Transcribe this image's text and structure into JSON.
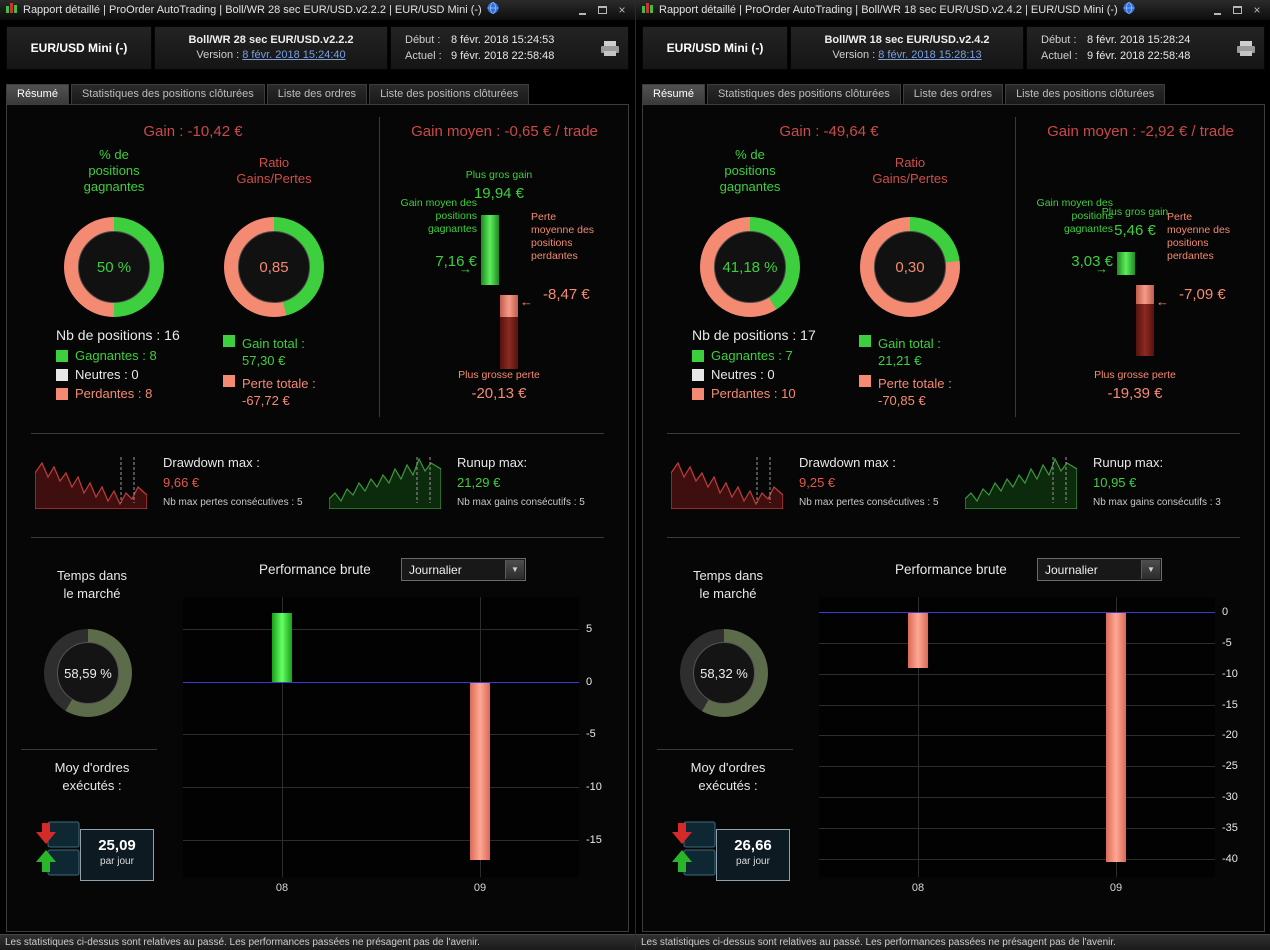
{
  "status_note": "Les statistiques ci-dessus sont relatives au passé. Les performances passées ne présagent pas de l'avenir.",
  "colors": {
    "green": "#3ecf3e",
    "salmon": "#f48a72",
    "red_title": "#c94a4a",
    "link_blue": "#7aa0e0",
    "zero_line_blue": "#3a3ad8"
  },
  "windows": [
    {
      "titlebar": {
        "text": "Rapport détaillé | ProOrder AutoTrading | Boll/WR 28 sec EUR/USD.v2.2.2 | EUR/USD Mini (-)"
      },
      "header": {
        "instrument": "EUR/USD Mini (-)",
        "strategy": "Boll/WR 28 sec EUR/USD.v2.2.2",
        "version_label": "Version :",
        "version_date": "8 févr. 2018 15:24:40",
        "debut_label": "Début :",
        "debut_value": "8 févr. 2018 15:24:53",
        "actuel_label": "Actuel :",
        "actuel_value": "9 févr. 2018 22:58:48"
      },
      "tabs": {
        "resume": "Résumé",
        "stats": "Statistiques des positions clôturées",
        "ordres": "Liste des ordres",
        "positions": "Liste des positions clôturées"
      },
      "summary": {
        "gain_title": "Gain : -10,42 €",
        "pct_label": "% de positions gagnantes",
        "ratio_label": "Ratio Gains/Pertes",
        "win_donut": {
          "text": "50 %",
          "pct": 50,
          "color_a": "#3ecf3e",
          "color_b": "#f48a72"
        },
        "ratio_donut": {
          "text": "0,85",
          "pct": 46,
          "color_a": "#3ecf3e",
          "color_b": "#f48a72"
        },
        "nb_positions": "Nb de positions : 16",
        "legend_gagnantes": "Gagnantes : 8",
        "legend_neutres": "Neutres : 0",
        "legend_perdantes": "Perdantes : 8",
        "gain_total_label": "Gain total :",
        "gain_total_value": "57,30 €",
        "perte_totale_label": "Perte totale :",
        "perte_totale_value": "-67,72 €"
      },
      "gain_moyen": {
        "title": "Gain moyen : -0,65 € / trade",
        "plus_gros_gain_label": "Plus gros gain",
        "plus_gros_gain_value": "19,94 €",
        "gain_moyen_gagnantes_label": "Gain moyen des positions gagnantes",
        "gain_moyen_gagnantes_value": "7,16 €",
        "perte_moyenne_label": "Perte moyenne des positions perdantes",
        "perte_moyenne_value": "-8,47 €",
        "plus_grosse_perte_label": "Plus grosse perte",
        "plus_grosse_perte_value": "-20,13 €",
        "bar_values": [
          19.94,
          7.16,
          -8.47,
          -20.13
        ]
      },
      "drawdown": {
        "label": "Drawdown max :",
        "value": "9,66 €",
        "sub": "Nb max pertes consécutives : 5"
      },
      "runup": {
        "label": "Runup max:",
        "value": "21,29 €",
        "sub": "Nb max gains consécutifs : 5"
      },
      "market_time": {
        "label_line1": "Temps dans",
        "label_line2": "le marché",
        "donut": {
          "text": "58,59 %",
          "pct": 58.59,
          "color_a": "#5c6b49",
          "color_b": "#2e2e2e"
        }
      },
      "orders": {
        "label_line1": "Moy d'ordres",
        "label_line2": "exécutés :",
        "value": "25,09",
        "unit": "par jour"
      },
      "performance": {
        "label": "Performance brute",
        "dropdown_value": "Journalier",
        "chart": {
          "type": "bar",
          "categories": [
            "08",
            "09"
          ],
          "values": [
            6.5,
            -16.92
          ],
          "ticks": [
            5,
            0,
            -5,
            -10,
            -15
          ],
          "ymax": 8,
          "ymin": -18.5
        }
      }
    },
    {
      "titlebar": {
        "text": "Rapport détaillé | ProOrder AutoTrading | Boll/WR 18 sec EUR/USD.v2.4.2 | EUR/USD Mini (-)"
      },
      "header": {
        "instrument": "EUR/USD Mini (-)",
        "strategy": "Boll/WR 18 sec EUR/USD.v2.4.2",
        "version_label": "Version :",
        "version_date": "8 févr. 2018 15:28:13",
        "debut_label": "Début :",
        "debut_value": "8 févr. 2018 15:28:24",
        "actuel_label": "Actuel :",
        "actuel_value": "9 févr. 2018 22:58:48"
      },
      "tabs": {
        "resume": "Résumé",
        "stats": "Statistiques des positions clôturées",
        "ordres": "Liste des ordres",
        "positions": "Liste des positions clôturées"
      },
      "summary": {
        "gain_title": "Gain : -49,64 €",
        "pct_label": "% de positions gagnantes",
        "ratio_label": "Ratio Gains/Pertes",
        "win_donut": {
          "text": "41,18 %",
          "pct": 41.18,
          "color_a": "#3ecf3e",
          "color_b": "#f48a72"
        },
        "ratio_donut": {
          "text": "0,30",
          "pct": 23,
          "color_a": "#3ecf3e",
          "color_b": "#f48a72"
        },
        "nb_positions": "Nb de positions : 17",
        "legend_gagnantes": "Gagnantes : 7",
        "legend_neutres": "Neutres : 0",
        "legend_perdantes": "Perdantes : 10",
        "gain_total_label": "Gain total :",
        "gain_total_value": "21,21 €",
        "perte_totale_label": "Perte totale :",
        "perte_totale_value": "-70,85 €"
      },
      "gain_moyen": {
        "title": "Gain moyen : -2,92 € / trade",
        "plus_gros_gain_label": "Plus gros gain",
        "plus_gros_gain_value": "5,46 €",
        "gain_moyen_gagnantes_label": "Gain moyen des positions gagnantes",
        "gain_moyen_gagnantes_value": "3,03 €",
        "perte_moyenne_label": "Perte moyenne des positions perdantes",
        "perte_moyenne_value": "-7,09 €",
        "plus_grosse_perte_label": "Plus grosse perte",
        "plus_grosse_perte_value": "-19,39 €",
        "bar_values": [
          5.46,
          3.03,
          -7.09,
          -19.39
        ]
      },
      "drawdown": {
        "label": "Drawdown max :",
        "value": "9,25 €",
        "sub": "Nb max pertes consécutives : 5"
      },
      "runup": {
        "label": "Runup max:",
        "value": "10,95 €",
        "sub": "Nb max gains consécutifs : 3"
      },
      "market_time": {
        "label_line1": "Temps dans",
        "label_line2": "le marché",
        "donut": {
          "text": "58,32 %",
          "pct": 58.32,
          "color_a": "#5c6b49",
          "color_b": "#2e2e2e"
        }
      },
      "orders": {
        "label_line1": "Moy d'ordres",
        "label_line2": "exécutés :",
        "value": "26,66",
        "unit": "par jour"
      },
      "performance": {
        "label": "Performance brute",
        "dropdown_value": "Journalier",
        "chart": {
          "type": "bar",
          "categories": [
            "08",
            "09"
          ],
          "values": [
            -9.0,
            -40.64
          ],
          "ticks": [
            0,
            -5,
            -10,
            -15,
            -20,
            -25,
            -30,
            -35,
            -40
          ],
          "ymax": 2.5,
          "ymin": -43
        }
      }
    }
  ]
}
